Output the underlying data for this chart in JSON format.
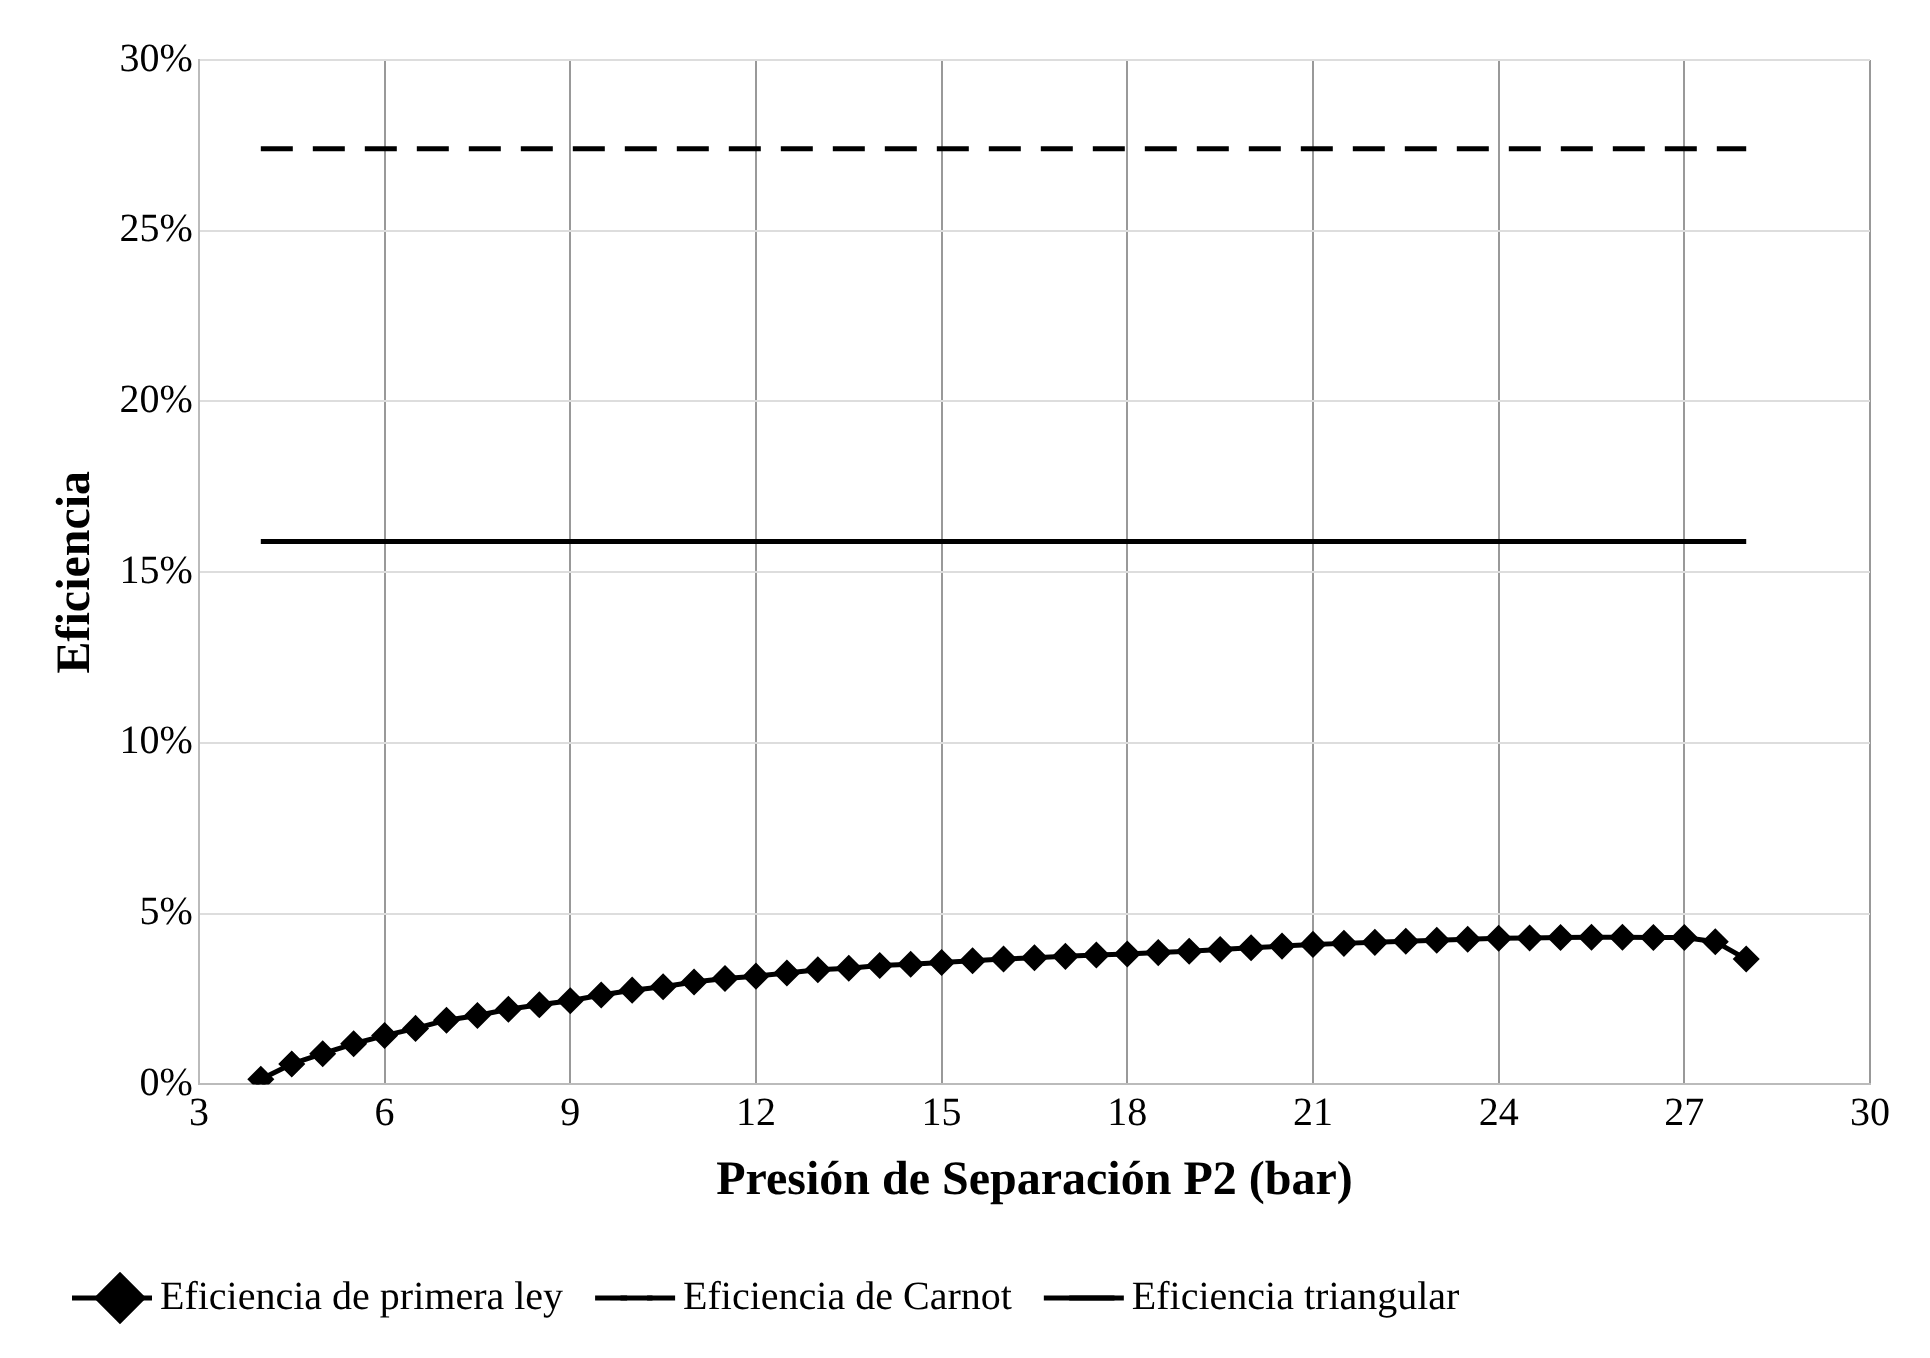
{
  "chart_data": {
    "type": "line",
    "xlabel": "Presión de Separación P2 (bar)",
    "ylabel": "Eficiencia",
    "xlim": [
      3,
      30
    ],
    "xticks": [
      3,
      6,
      9,
      12,
      15,
      18,
      21,
      24,
      27,
      30
    ],
    "ylim": [
      0,
      30
    ],
    "yticks": [
      {
        "value": 0,
        "label": "0%"
      },
      {
        "value": 5,
        "label": "5%"
      },
      {
        "value": 10,
        "label": "10%"
      },
      {
        "value": 15,
        "label": "15%"
      },
      {
        "value": 20,
        "label": "20%"
      },
      {
        "value": 25,
        "label": "25%"
      },
      {
        "value": 30,
        "label": "30%"
      }
    ],
    "grid": true,
    "legend": "bottom",
    "series": [
      {
        "name": "Eficiencia de primera ley",
        "color": "#000000",
        "marker": "diamond",
        "line_style": "solid",
        "x": [
          4,
          4.5,
          5,
          5.5,
          6,
          6.5,
          7,
          7.5,
          8,
          8.5,
          9,
          9.5,
          10,
          10.5,
          11,
          11.5,
          12,
          12.5,
          13,
          13.5,
          14,
          14.5,
          15,
          15.5,
          16,
          16.5,
          17,
          17.5,
          18,
          18.5,
          19,
          19.5,
          20,
          20.5,
          21,
          21.5,
          22,
          22.5,
          23,
          23.5,
          24,
          24.5,
          25,
          25.5,
          26,
          26.5,
          27,
          27.5,
          28
        ],
        "values": [
          0.15,
          0.6,
          0.9,
          1.19,
          1.43,
          1.64,
          1.88,
          2.02,
          2.2,
          2.33,
          2.45,
          2.62,
          2.76,
          2.86,
          3.0,
          3.1,
          3.17,
          3.26,
          3.36,
          3.4,
          3.48,
          3.52,
          3.57,
          3.62,
          3.67,
          3.71,
          3.75,
          3.79,
          3.82,
          3.86,
          3.9,
          3.95,
          4.0,
          4.05,
          4.1,
          4.13,
          4.16,
          4.19,
          4.22,
          4.25,
          4.28,
          4.29,
          4.3,
          4.31,
          4.31,
          4.3,
          4.3,
          4.18,
          3.67
        ]
      },
      {
        "name": "Eficiencia de Carnot",
        "color": "#000000",
        "marker": "none",
        "line_style": "dashed",
        "x": [
          4,
          28
        ],
        "values": [
          27.4,
          27.4
        ]
      },
      {
        "name": "Eficiencia triangular",
        "color": "#000000",
        "marker": "none",
        "line_style": "solid",
        "x": [
          4,
          28
        ],
        "values": [
          15.9,
          15.9
        ]
      }
    ]
  }
}
